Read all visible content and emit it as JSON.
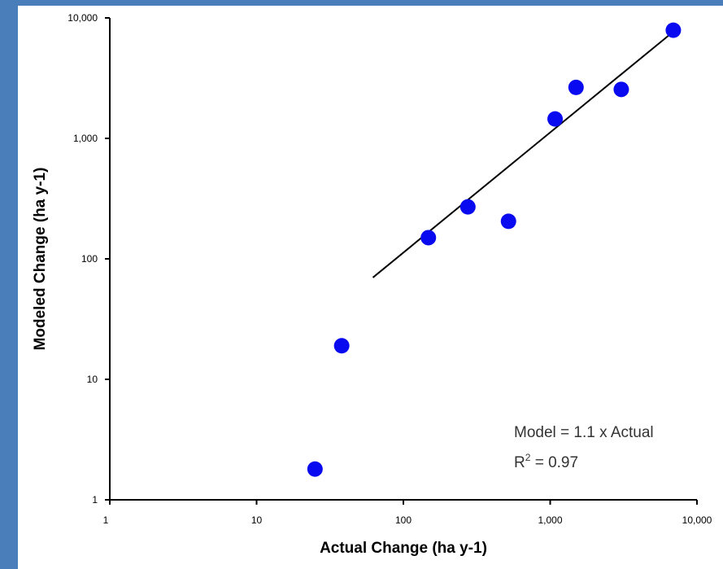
{
  "chart_data": {
    "type": "scatter",
    "xlabel": "Actual Change  (ha y-1)",
    "ylabel": "Modeled Change  (ha y-1)",
    "xscale": "log",
    "yscale": "log",
    "xlim": [
      1,
      10000
    ],
    "ylim": [
      1,
      10000
    ],
    "x_tick_labels": [
      "1",
      "10",
      "100",
      "1,000",
      "10,000"
    ],
    "y_tick_labels": [
      "1",
      "10",
      "100",
      "1,000",
      "10,000"
    ],
    "grid": false,
    "point_color": "#0a0af0",
    "points": [
      {
        "x": 25,
        "y": 1.8
      },
      {
        "x": 38,
        "y": 19
      },
      {
        "x": 148,
        "y": 150
      },
      {
        "x": 275,
        "y": 270
      },
      {
        "x": 520,
        "y": 205
      },
      {
        "x": 1080,
        "y": 1450
      },
      {
        "x": 1500,
        "y": 2650
      },
      {
        "x": 3050,
        "y": 2550
      },
      {
        "x": 6900,
        "y": 7900
      }
    ],
    "fit_line": {
      "x": [
        62,
        7000
      ],
      "y": [
        70,
        7800
      ]
    },
    "annotation": {
      "line1": "Model = 1.1 x Actual",
      "line2_prefix": "R",
      "line2_sup": "2",
      "line2_suffix": " = 0.97"
    }
  }
}
